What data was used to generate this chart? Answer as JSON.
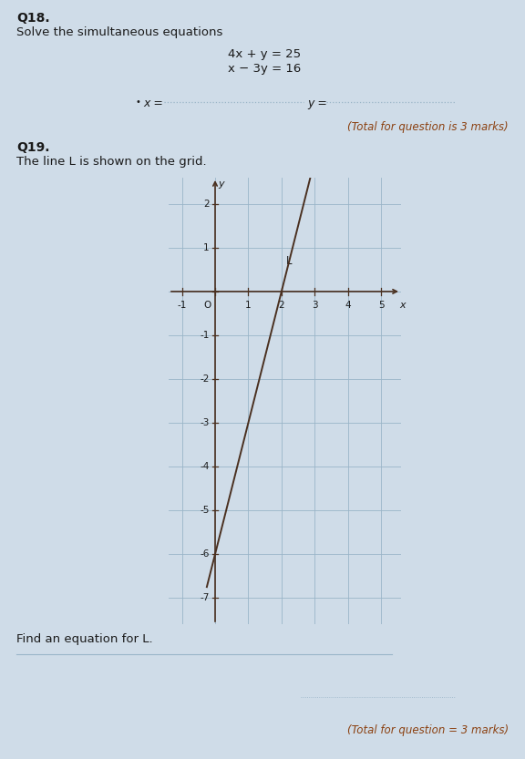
{
  "background_color": "#cfdce8",
  "q18_label": "Q18.",
  "q18_instruction": "Solve the simultaneous equations",
  "eq1": "4x + y = 25",
  "eq2": "x − 3y = 16",
  "total_q18": "(Total for question is 3 marks)",
  "q19_label": "Q19.",
  "q19_instruction": "The line L is shown on the grid.",
  "find_eq_label": "Find an equation for L.",
  "total_q19": "(Total for question = 3 marks)",
  "line_color": "#4a3020",
  "axis_color": "#4a3020",
  "grid_color": "#9ab5c8",
  "text_color": "#1a1a1a",
  "marks_color": "#8B4010",
  "dot_color": "#9ab5c8"
}
